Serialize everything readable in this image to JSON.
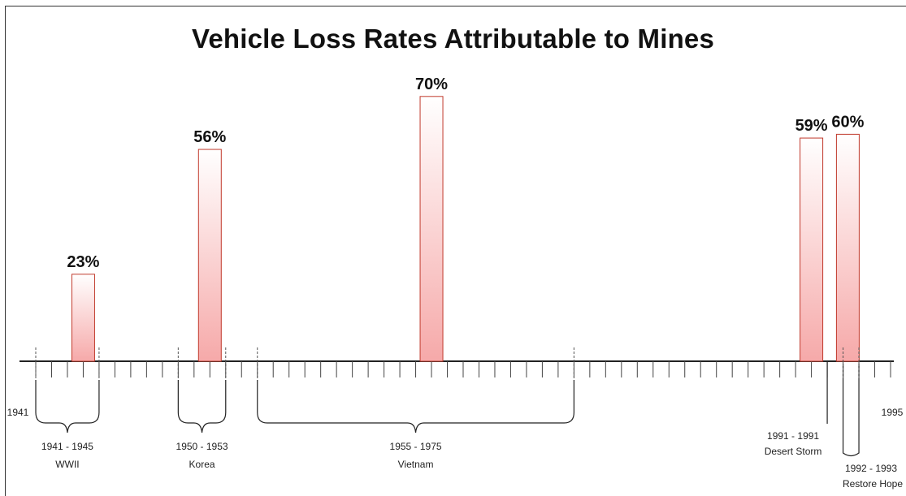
{
  "chart_data": {
    "type": "bar",
    "title": "Vehicle Loss Rates Attributable to Mines",
    "xlim": [
      1941,
      1995
    ],
    "ylim": [
      0,
      100
    ],
    "axis_end_labels": [
      "1941",
      "1995"
    ],
    "bar_color": "#f6a9a9",
    "bar_edge_color": "#c0392b",
    "series": [
      {
        "x": 1944,
        "value": 23,
        "label": "23%"
      },
      {
        "x": 1952,
        "value": 56,
        "label": "56%"
      },
      {
        "x": 1966,
        "value": 70,
        "label": "70%"
      },
      {
        "x": 1990,
        "value": 59,
        "label": "59%"
      },
      {
        "x": 1992.3,
        "value": 60,
        "label": "60%"
      }
    ],
    "periods": [
      {
        "start": 1941,
        "end": 1945,
        "range": "1941 - 1945",
        "name": "WWII",
        "marker": "brace"
      },
      {
        "start": 1950,
        "end": 1953,
        "range": "1950 - 1953",
        "name": "Korea",
        "marker": "brace"
      },
      {
        "start": 1955,
        "end": 1975,
        "range": "1955 - 1975",
        "name": "Vietnam",
        "marker": "brace"
      },
      {
        "start": 1991,
        "end": 1991,
        "range": "1991 - 1991",
        "name": "Desert Storm",
        "marker": "line"
      },
      {
        "start": 1992,
        "end": 1993,
        "range": "1992 - 1993",
        "name": "Restore Hope",
        "marker": "bracket"
      }
    ]
  }
}
